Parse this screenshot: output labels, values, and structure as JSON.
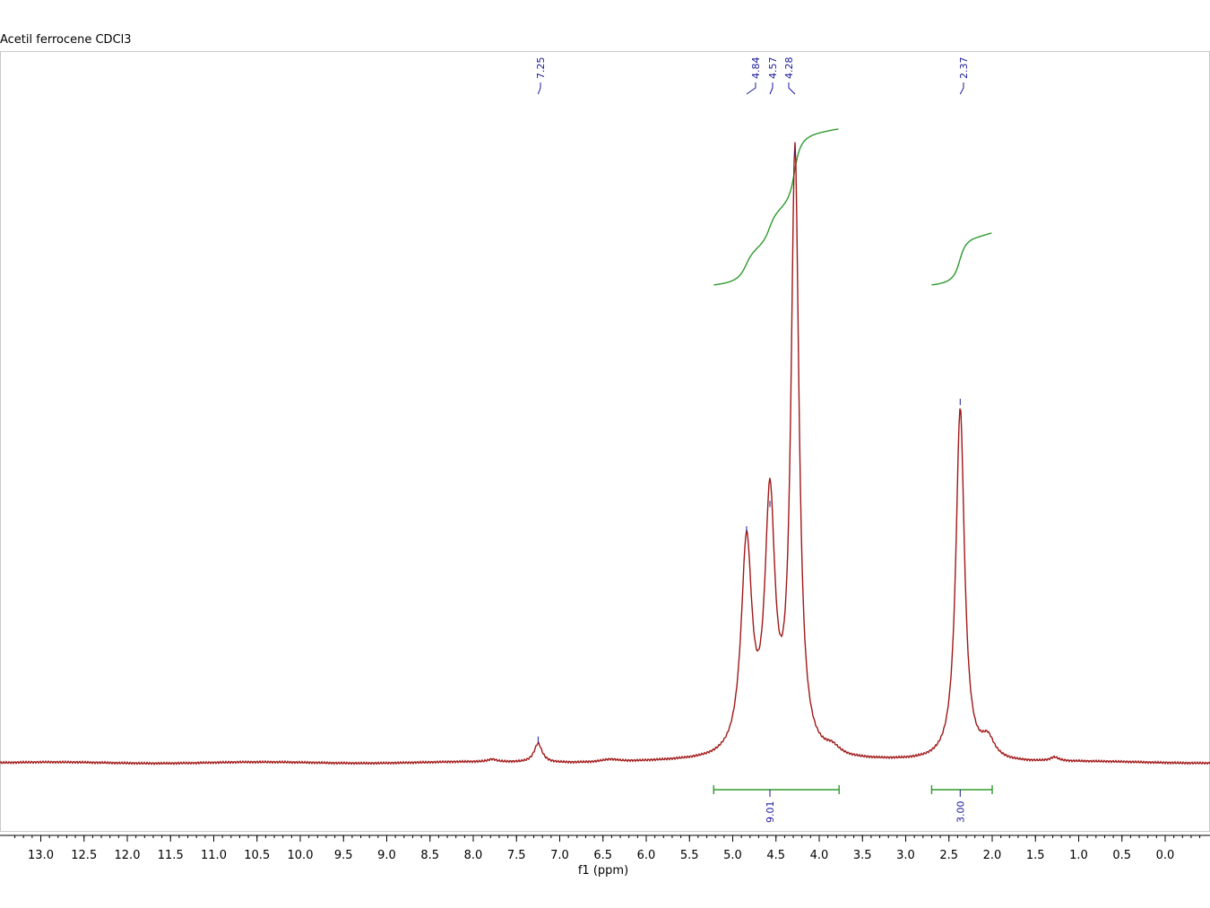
{
  "chart_data": {
    "type": "line",
    "title": "Acetil ferrocene CDCl3",
    "xlabel": "f1 (ppm)",
    "xlim": [
      13.35,
      -0.5
    ],
    "x_reversed": true,
    "ylim": [
      0,
      1
    ],
    "x_ticks": [
      "13.0",
      "12.5",
      "12.0",
      "11.5",
      "11.0",
      "10.5",
      "10.0",
      "9.5",
      "9.0",
      "8.5",
      "8.0",
      "7.5",
      "7.0",
      "6.5",
      "6.0",
      "5.5",
      "5.0",
      "4.5",
      "4.0",
      "3.5",
      "3.0",
      "2.5",
      "2.0",
      "1.5",
      "1.0",
      "0.5",
      "0.0"
    ],
    "peaks": [
      {
        "ppm": 7.25,
        "label": "7.25",
        "height": 0.03
      },
      {
        "ppm": 4.84,
        "label": "4.84",
        "height": 0.36
      },
      {
        "ppm": 4.57,
        "label": "4.57",
        "height": 0.4
      },
      {
        "ppm": 4.28,
        "label": "4.28",
        "height": 0.95
      },
      {
        "ppm": 2.37,
        "label": "2.37",
        "height": 0.56
      }
    ],
    "integrals": [
      {
        "from": 5.22,
        "to": 3.77,
        "value": "9.01",
        "curve_start": 0.7,
        "curve_end": 0.93
      },
      {
        "from": 2.7,
        "to": 2.0,
        "value": "3.00",
        "curve_start": 0.7,
        "curve_end": 0.78
      }
    ],
    "colors": {
      "spectrum": "#a01818",
      "integral": "#2e9a2e",
      "label": "#1a1a9a"
    }
  }
}
